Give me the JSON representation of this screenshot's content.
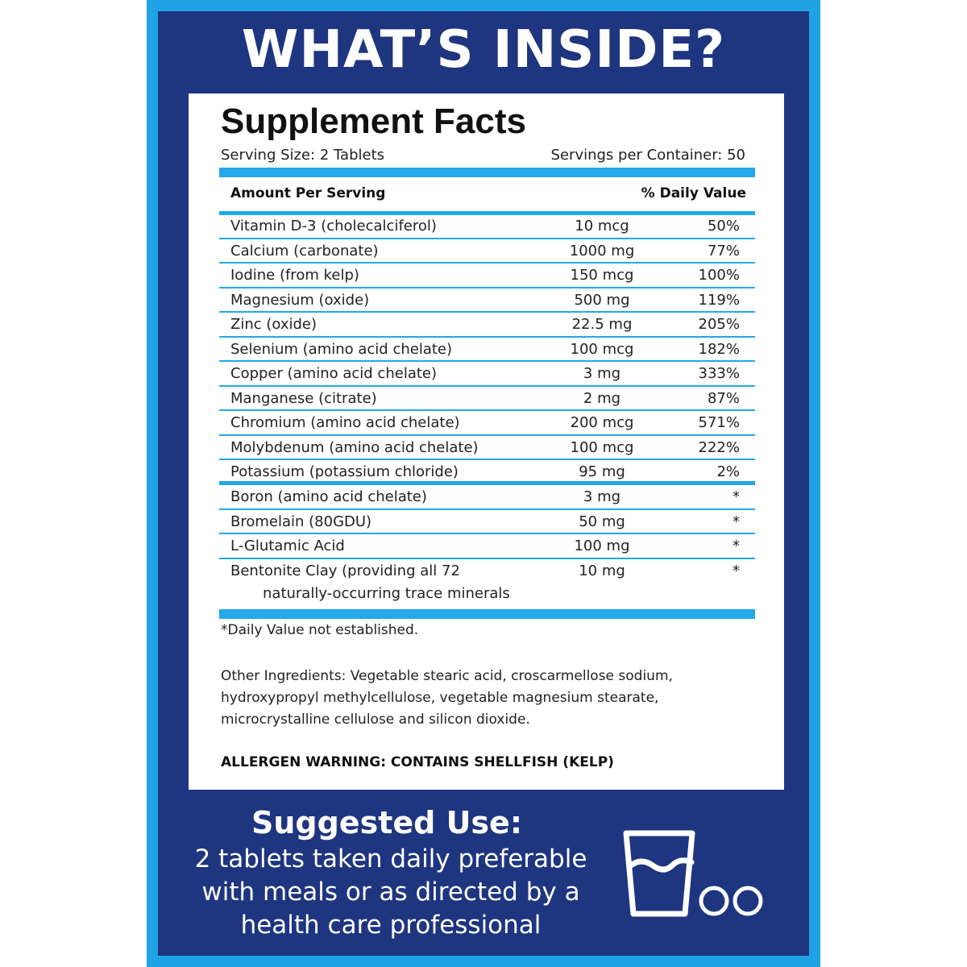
{
  "header": {
    "title": "WHAT’S INSIDE?"
  },
  "facts": {
    "title": "Supplement Facts",
    "serving_size": "Serving Size:  2 Tablets",
    "servings_per_container": "Servings per Container:  50",
    "amount_header": "Amount Per Serving",
    "dv_header": "% Daily Value",
    "rows": [
      {
        "name": "Vitamin D-3 (cholecalciferol)",
        "amount": "10 mcg",
        "dv": "50%"
      },
      {
        "name": "Calcium (carbonate)",
        "amount": "1000 mg",
        "dv": "77%"
      },
      {
        "name": "Iodine (from kelp)",
        "amount": "150 mcg",
        "dv": "100%"
      },
      {
        "name": "Magnesium (oxide)",
        "amount": "500 mg",
        "dv": "119%"
      },
      {
        "name": "Zinc (oxide)",
        "amount": "22.5 mg",
        "dv": "205%"
      },
      {
        "name": "Selenium (amino acid chelate)",
        "amount": "100 mcg",
        "dv": "182%"
      },
      {
        "name": "Copper (amino acid chelate)",
        "amount": "3 mg",
        "dv": "333%"
      },
      {
        "name": "Manganese (citrate)",
        "amount": "2 mg",
        "dv": "87%"
      },
      {
        "name": "Chromium (amino acid chelate)",
        "amount": "200 mcg",
        "dv": "571%"
      },
      {
        "name": "Molybdenum  (amino acid chelate)",
        "amount": "100 mcg",
        "dv": "222%"
      },
      {
        "name": "Potassium (potassium chloride)",
        "amount": "95 mg",
        "dv": "2%"
      },
      {
        "name": "Boron  (amino acid chelate)",
        "amount": "3 mg",
        "dv": "*"
      },
      {
        "name": "Bromelain (80GDU)",
        "amount": "50 mg",
        "dv": "*"
      },
      {
        "name": "L-Glutamic Acid",
        "amount": "100 mg",
        "dv": "*"
      },
      {
        "name": "Bentonite Clay (providing all 72",
        "name_line2": "naturally-occurring trace minerals",
        "amount": "10 mg",
        "dv": "*"
      }
    ],
    "footnote": "*Daily Value not established.",
    "other_ingredients": "Other Ingredients:  Vegetable stearic acid, croscarmellose sodium, hydroxypropyl methylcellulose, vegetable magnesium stearate, microcrystalline cellulose and silicon dioxide.",
    "allergen": "ALLERGEN WARNING:  CONTAINS SHELLFISH (KELP)"
  },
  "suggested_use": {
    "title": "Suggested Use:",
    "line1": "2 tablets taken daily preferable",
    "line2": "with meals or as directed by a",
    "line3": "health care professional"
  },
  "icons": {
    "glass": "water-glass-icon",
    "tablets": "two-tablets-icon"
  },
  "colors": {
    "navy": "#1e3580",
    "sky_blue": "#1fa3e6",
    "white": "#ffffff"
  }
}
